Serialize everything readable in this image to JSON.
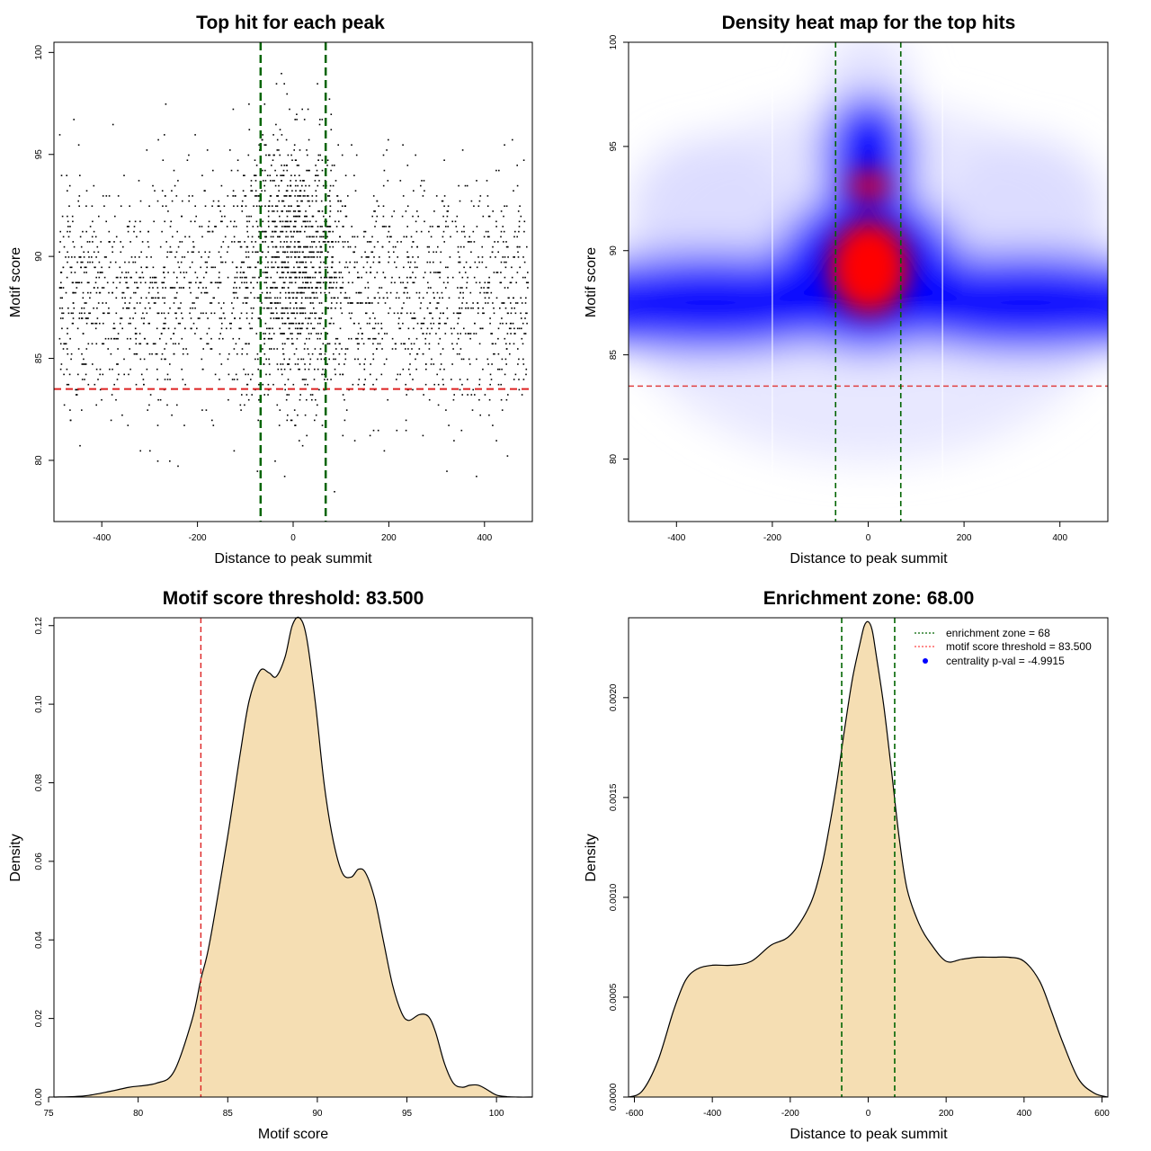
{
  "chart_data": [
    {
      "type": "scatter",
      "title": "Top hit for each peak",
      "xlabel": "Distance to peak summit",
      "ylabel": "Motif score",
      "xlim": [
        -500,
        500
      ],
      "ylim": [
        77,
        100.5
      ],
      "xticks": [
        "-400",
        "-200",
        "0",
        "200",
        "400"
      ],
      "yticks": [
        "80",
        "85",
        "90",
        "95",
        "100"
      ],
      "threshold": 83.5,
      "enrichment_zone": [
        -68,
        68
      ],
      "threshold_color": "#dd2222",
      "zone_color": "#006400",
      "point_color": "#000000",
      "approx_point_count": 3000
    },
    {
      "type": "heatmap",
      "title": "Density heat map for the top hits",
      "xlabel": "Distance to peak summit",
      "ylabel": "Motif score",
      "xlim": [
        -500,
        500
      ],
      "ylim": [
        77,
        100
      ],
      "xticks": [
        "-400",
        "-200",
        "0",
        "200",
        "400"
      ],
      "yticks": [
        "80",
        "85",
        "90",
        "95",
        "100"
      ],
      "threshold": 83.5,
      "enrichment_zone": [
        -68,
        68
      ],
      "colormap": [
        "#ffffff",
        "#0000ff",
        "#ff0000"
      ],
      "hotspots": [
        {
          "x": 0,
          "y": 89.2,
          "level": "high"
        },
        {
          "x": 0,
          "y": 93.2,
          "level": "high"
        },
        {
          "x": 0,
          "y": 96.0,
          "level": "medium"
        },
        {
          "x": -350,
          "y": 87.5,
          "level": "medium"
        },
        {
          "x": 350,
          "y": 87.5,
          "level": "medium"
        }
      ]
    },
    {
      "type": "area",
      "title": "Motif score threshold: 83.500",
      "xlabel": "Motif score",
      "ylabel": "Density",
      "xlim": [
        75.3,
        102
      ],
      "ylim": [
        0,
        0.122
      ],
      "xticks": [
        "75",
        "80",
        "85",
        "90",
        "95",
        "100"
      ],
      "yticks": [
        "0.00",
        "0.02",
        "0.04",
        "0.06",
        "0.08",
        "0.10",
        "0.12"
      ],
      "fill_color": "#f5deb3",
      "threshold": 83.5,
      "threshold_color": "#dd2222",
      "x": [
        75.3,
        77,
        78.5,
        79.5,
        81,
        82,
        83,
        83.5,
        84,
        85,
        85.7,
        86.2,
        86.8,
        87.3,
        87.7,
        88.2,
        88.6,
        89.0,
        89.4,
        89.9,
        90.4,
        90.9,
        91.4,
        91.9,
        92.3,
        92.7,
        93.2,
        93.7,
        94.2,
        94.7,
        95.1,
        95.7,
        96.2,
        96.6,
        97.1,
        97.6,
        98.1,
        98.5,
        99.0,
        99.5,
        100.0,
        100.6,
        101.2,
        102.0
      ],
      "y": [
        0.0,
        0.0003,
        0.0015,
        0.0025,
        0.0035,
        0.0065,
        0.0195,
        0.03,
        0.0395,
        0.0665,
        0.0875,
        0.101,
        0.1085,
        0.108,
        0.107,
        0.112,
        0.12,
        0.122,
        0.117,
        0.1,
        0.079,
        0.065,
        0.057,
        0.056,
        0.058,
        0.057,
        0.0505,
        0.0395,
        0.0285,
        0.0215,
        0.0195,
        0.021,
        0.0205,
        0.0165,
        0.0085,
        0.0035,
        0.0025,
        0.003,
        0.003,
        0.0018,
        0.0005,
        0.0001,
        0.0,
        0.0
      ]
    },
    {
      "type": "area",
      "title": "Enrichment zone: 68.00",
      "xlabel": "Distance to peak summit",
      "ylabel": "Density",
      "xlim": [
        -615,
        615
      ],
      "ylim": [
        0,
        0.0024
      ],
      "xticks": [
        "-600",
        "-400",
        "-200",
        "0",
        "200",
        "400",
        "600"
      ],
      "yticks": [
        "0.0000",
        "0.0005",
        "0.0010",
        "0.0015",
        "0.0020"
      ],
      "fill_color": "#f5deb3",
      "enrichment_zone": [
        -68,
        68
      ],
      "zone_color": "#006400",
      "x": [
        -615,
        -580,
        -540,
        -500,
        -470,
        -440,
        -400,
        -350,
        -300,
        -250,
        -200,
        -150,
        -120,
        -100,
        -80,
        -60,
        -40,
        -20,
        -10,
        0,
        10,
        20,
        40,
        60,
        80,
        100,
        130,
        160,
        200,
        240,
        280,
        320,
        360,
        400,
        440,
        470,
        500,
        540,
        580,
        615
      ],
      "y": [
        0.0,
        3e-05,
        0.00018,
        0.00043,
        0.00058,
        0.00064,
        0.00066,
        0.00066,
        0.00068,
        0.00076,
        0.00081,
        0.00096,
        0.00115,
        0.00135,
        0.00158,
        0.00185,
        0.0021,
        0.00228,
        0.00236,
        0.00238,
        0.00234,
        0.00222,
        0.00196,
        0.00163,
        0.00129,
        0.00104,
        0.00087,
        0.00077,
        0.00068,
        0.00069,
        0.0007,
        0.0007,
        0.0007,
        0.00068,
        0.00058,
        0.00043,
        0.00027,
        9e-05,
        2e-05,
        0.0
      ],
      "legend": [
        {
          "label": "enrichment zone = 68",
          "style": "dotted-line",
          "color": "#006400"
        },
        {
          "label": "motif score threshold = 83.500",
          "style": "dotted-line",
          "color": "#ff4444"
        },
        {
          "label": "centrality p-val = -4.9915",
          "style": "dot",
          "color": "#0000ff"
        }
      ],
      "legend_position": "top-right"
    }
  ]
}
